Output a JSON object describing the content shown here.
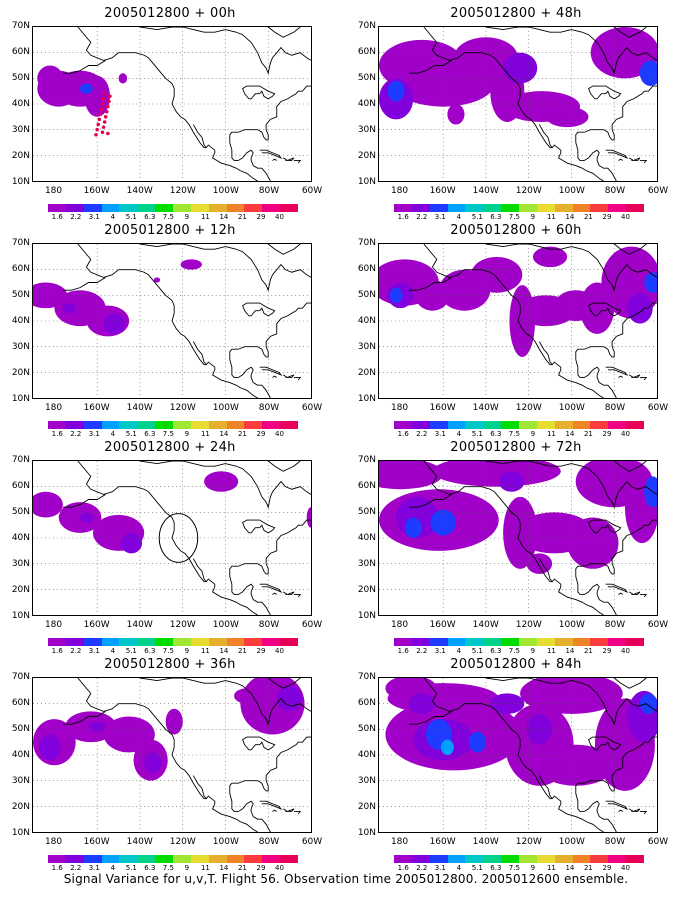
{
  "panels": [
    {
      "title": "2005012800  +  00h",
      "forecast_hour": 0,
      "has_flight_track": true,
      "has_circle": false
    },
    {
      "title": "2005012800  +  48h",
      "forecast_hour": 48,
      "has_flight_track": false,
      "has_circle": false
    },
    {
      "title": "2005012800  +  12h",
      "forecast_hour": 12,
      "has_flight_track": false,
      "has_circle": false
    },
    {
      "title": "2005012800  +  60h",
      "forecast_hour": 60,
      "has_flight_track": false,
      "has_circle": false
    },
    {
      "title": "2005012800  +  24h",
      "forecast_hour": 24,
      "has_flight_track": false,
      "has_circle": true
    },
    {
      "title": "2005012800  +  72h",
      "forecast_hour": 72,
      "has_flight_track": false,
      "has_circle": false
    },
    {
      "title": "2005012800  +  36h",
      "forecast_hour": 36,
      "has_flight_track": false,
      "has_circle": false
    },
    {
      "title": "2005012800  +  84h",
      "forecast_hour": 84,
      "has_flight_track": false,
      "has_circle": false
    }
  ],
  "axes": {
    "lat_labels": [
      "70N",
      "60N",
      "50N",
      "40N",
      "30N",
      "20N",
      "10N"
    ],
    "lon_labels": [
      "180",
      "160W",
      "140W",
      "120W",
      "100W",
      "80W",
      "60W"
    ],
    "lat_range": [
      10,
      70
    ],
    "lon_range": [
      "170E",
      "60W"
    ],
    "grid": "dotted"
  },
  "colorbar": {
    "labels": [
      "1.6",
      "2.2",
      "3.1",
      "4",
      "5.1",
      "6.3",
      "7.5",
      "9",
      "11",
      "14",
      "21",
      "29",
      "40"
    ],
    "colors": [
      "#a000c8",
      "#8200dc",
      "#1e3cff",
      "#00a0ff",
      "#00c8c8",
      "#00d28c",
      "#00dc00",
      "#a0e632",
      "#e6dc32",
      "#e6af2d",
      "#f08228",
      "#fa3c3c",
      "#f00082"
    ]
  },
  "flight_track_color": "#e6004c",
  "caption": "Signal Variance for u,v,T. Flight 56. Observation time 2005012800. 2005012600 ensemble."
}
